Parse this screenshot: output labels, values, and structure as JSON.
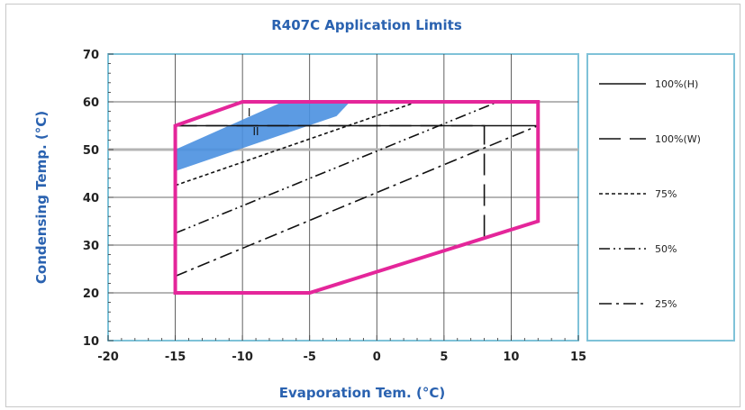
{
  "chart_data": {
    "type": "line",
    "title": "R407C Application Limits",
    "xlabel": "Evaporation Tem. (°C)",
    "ylabel": "Condensing Temp. (°C)",
    "xlim": [
      -20,
      15
    ],
    "ylim": [
      10,
      70
    ],
    "xticks": [
      -20,
      -15,
      -10,
      -5,
      0,
      5,
      10,
      15
    ],
    "yticks": [
      10,
      20,
      30,
      40,
      50,
      60,
      70
    ],
    "grid": true,
    "reference_line_y": 50,
    "envelope": {
      "color": "#e4269a",
      "points": [
        [
          -15,
          20
        ],
        [
          -5,
          20
        ],
        [
          12,
          35
        ],
        [
          12,
          60
        ],
        [
          -10,
          60
        ],
        [
          -15,
          55
        ]
      ]
    },
    "shaded_band": {
      "color": "#4a90e0",
      "points": [
        [
          -15,
          45.5
        ],
        [
          -3,
          57
        ],
        [
          -2,
          60
        ],
        [
          -7,
          60
        ],
        [
          -15,
          50
        ]
      ]
    },
    "region_labels": [
      {
        "text": "I",
        "x": -9.5,
        "y": 57
      },
      {
        "text": "II",
        "x": -9,
        "y": 53
      }
    ],
    "series": [
      {
        "name": "100%(H)",
        "style": "solid",
        "x": [
          -15,
          12
        ],
        "y": [
          55,
          55
        ]
      },
      {
        "name": "100%(W)",
        "style": "longdash",
        "x": [
          -15,
          8,
          8
        ],
        "y": [
          55,
          55,
          31.5
        ]
      },
      {
        "name": "75%",
        "style": "dot",
        "x": [
          -15,
          3
        ],
        "y": [
          42.5,
          60
        ]
      },
      {
        "name": "50%",
        "style": "dashdotdot",
        "x": [
          -15,
          9
        ],
        "y": [
          32.5,
          60
        ]
      },
      {
        "name": "25%",
        "style": "dashdot",
        "x": [
          -15,
          12
        ],
        "y": [
          23.5,
          55
        ]
      }
    ],
    "legend": {
      "placement": "right",
      "entries": [
        "100%(H)",
        "100%(W)",
        "75%",
        "50%",
        "25%"
      ]
    }
  }
}
